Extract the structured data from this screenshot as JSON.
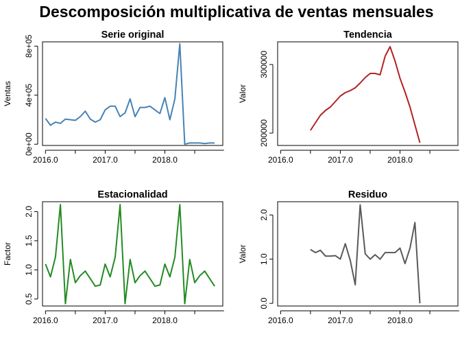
{
  "title": "Descomposición multiplicativa de ventas mensuales",
  "chart_data": [
    {
      "type": "line",
      "title": "Serie original",
      "xlabel": "",
      "ylabel": "Ventas",
      "xlim": [
        2015.95,
        2018.97
      ],
      "ylim": [
        -10000,
        835000
      ],
      "x_ticks": [
        2016,
        2017,
        2018
      ],
      "x_tick_labels": [
        "2016.0",
        "2017.0",
        "2018.0"
      ],
      "y_ticks": [
        0,
        400000,
        800000
      ],
      "y_tick_labels": [
        "0e+00",
        "4e+05",
        "8e+05"
      ],
      "color": "#4682b4",
      "x": [
        2016.0,
        2016.083,
        2016.167,
        2016.25,
        2016.333,
        2016.417,
        2016.5,
        2016.583,
        2016.667,
        2016.75,
        2016.833,
        2016.917,
        2017.0,
        2017.083,
        2017.167,
        2017.25,
        2017.333,
        2017.417,
        2017.5,
        2017.583,
        2017.667,
        2017.75,
        2017.833,
        2017.917,
        2018.0,
        2018.083,
        2018.167,
        2018.25,
        2018.333,
        2018.417,
        2018.5,
        2018.583,
        2018.667,
        2018.75,
        2018.833
      ],
      "y": [
        210000,
        155000,
        180000,
        170000,
        205000,
        200000,
        195000,
        225000,
        270000,
        205000,
        180000,
        200000,
        280000,
        310000,
        310000,
        225000,
        255000,
        370000,
        225000,
        300000,
        300000,
        310000,
        280000,
        250000,
        380000,
        200000,
        370000,
        820000,
        0,
        10000,
        10000,
        10000,
        5000,
        10000,
        10000
      ]
    },
    {
      "type": "line",
      "title": "Tendencia",
      "xlabel": "",
      "ylabel": "Valor",
      "xlim": [
        2015.95,
        2018.97
      ],
      "ylim": [
        182000,
        333000
      ],
      "x_ticks": [
        2016,
        2017,
        2018
      ],
      "x_tick_labels": [
        "2016.0",
        "2017.0",
        "2018.0"
      ],
      "y_ticks": [
        200000,
        300000
      ],
      "y_tick_labels": [
        "200000",
        "300000"
      ],
      "color": "#b22222",
      "x": [
        2016.5,
        2016.583,
        2016.667,
        2016.75,
        2016.833,
        2016.917,
        2017.0,
        2017.083,
        2017.167,
        2017.25,
        2017.333,
        2017.417,
        2017.5,
        2017.583,
        2017.667,
        2017.75,
        2017.833,
        2017.917,
        2018.0,
        2018.083,
        2018.167,
        2018.25,
        2018.333
      ],
      "y": [
        204000,
        215000,
        226000,
        233000,
        238000,
        246000,
        254000,
        259000,
        262000,
        266000,
        273000,
        281000,
        287000,
        287000,
        285000,
        312000,
        326000,
        305000,
        280000,
        260000,
        238000,
        212000,
        186000
      ]
    },
    {
      "type": "line",
      "title": "Estacionalidad",
      "xlabel": "",
      "ylabel": "Factor",
      "xlim": [
        2015.95,
        2018.97
      ],
      "ylim": [
        0.38,
        2.17
      ],
      "x_ticks": [
        2016,
        2017,
        2018
      ],
      "x_tick_labels": [
        "2016.0",
        "2017.0",
        "2018.0"
      ],
      "y_ticks": [
        0.5,
        1.0,
        1.5,
        2.0
      ],
      "y_tick_labels": [
        "0.5",
        "1.0",
        "1.5",
        "2.0"
      ],
      "color": "#228b22",
      "x": [
        2016.0,
        2016.083,
        2016.167,
        2016.25,
        2016.333,
        2016.417,
        2016.5,
        2016.583,
        2016.667,
        2016.75,
        2016.833,
        2016.917,
        2017.0,
        2017.083,
        2017.167,
        2017.25,
        2017.333,
        2017.417,
        2017.5,
        2017.583,
        2017.667,
        2017.75,
        2017.833,
        2017.917,
        2018.0,
        2018.083,
        2018.167,
        2018.25,
        2018.333,
        2018.417,
        2018.5,
        2018.583,
        2018.667,
        2018.75,
        2018.833
      ],
      "y": [
        1.1,
        0.88,
        1.22,
        2.12,
        0.42,
        1.18,
        0.78,
        0.9,
        0.98,
        0.85,
        0.72,
        0.74,
        1.1,
        0.88,
        1.22,
        2.12,
        0.42,
        1.18,
        0.78,
        0.9,
        0.98,
        0.85,
        0.72,
        0.74,
        1.1,
        0.88,
        1.22,
        2.12,
        0.42,
        1.18,
        0.78,
        0.9,
        0.98,
        0.85,
        0.72
      ]
    },
    {
      "type": "line",
      "title": "Residuo",
      "xlabel": "",
      "ylabel": "Valor",
      "xlim": [
        2015.95,
        2018.97
      ],
      "ylim": [
        -0.06,
        2.3
      ],
      "x_ticks": [
        2016,
        2017,
        2018
      ],
      "x_tick_labels": [
        "2016.0",
        "2017.0",
        "2018.0"
      ],
      "y_ticks": [
        0.0,
        1.0,
        2.0
      ],
      "y_tick_labels": [
        "0.0",
        "1.0",
        "2.0"
      ],
      "color": "#595959",
      "x": [
        2016.5,
        2016.583,
        2016.667,
        2016.75,
        2016.833,
        2016.917,
        2017.0,
        2017.083,
        2017.167,
        2017.25,
        2017.333,
        2017.417,
        2017.5,
        2017.583,
        2017.667,
        2017.75,
        2017.833,
        2017.917,
        2018.0,
        2018.083,
        2018.167,
        2018.25,
        2018.333
      ],
      "y": [
        1.22,
        1.15,
        1.2,
        1.07,
        1.07,
        1.08,
        1.0,
        1.35,
        0.97,
        0.42,
        2.23,
        1.12,
        1.0,
        1.1,
        1.0,
        1.15,
        1.15,
        1.15,
        1.25,
        0.9,
        1.25,
        1.83,
        0.0
      ]
    }
  ]
}
